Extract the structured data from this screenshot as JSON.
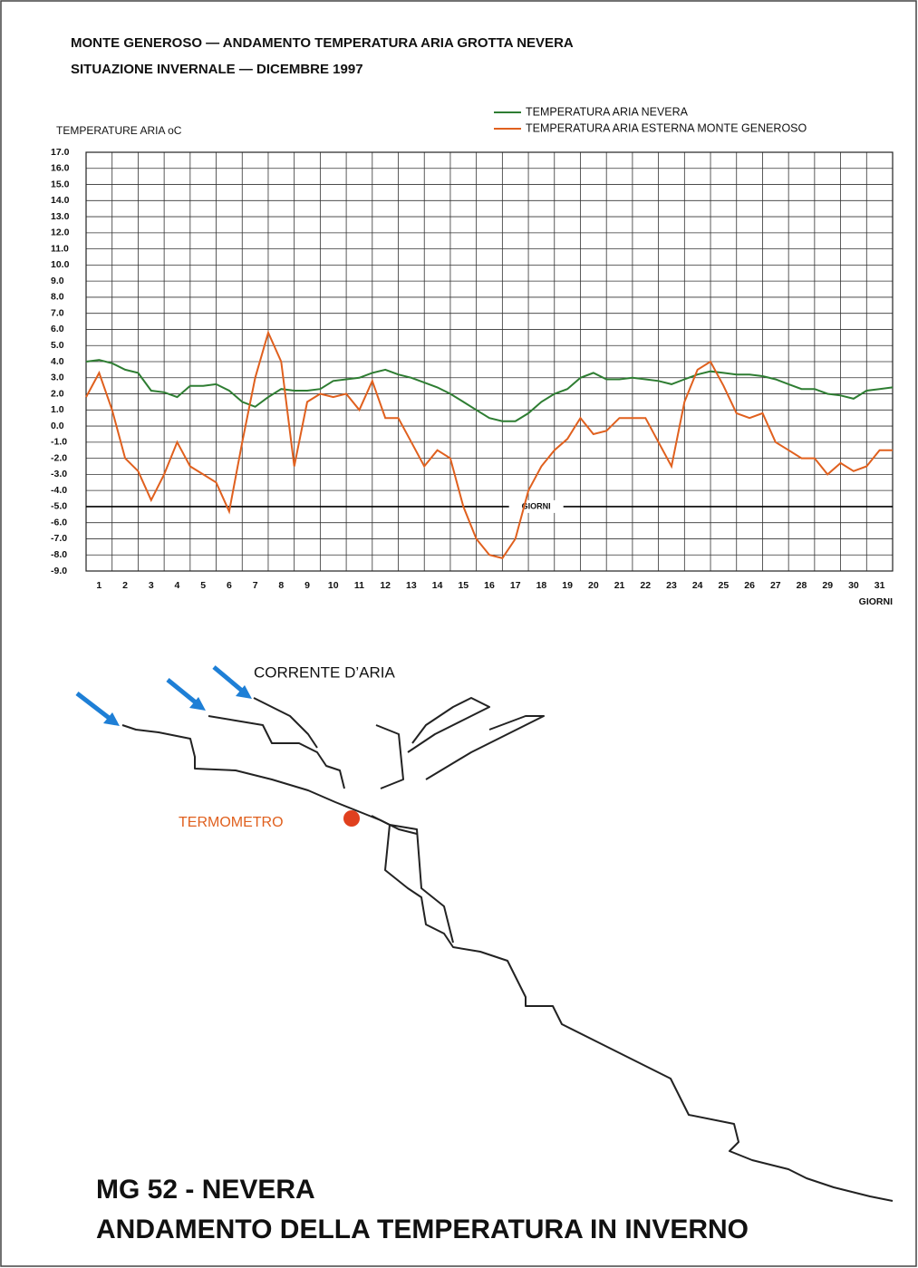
{
  "chart_data": {
    "type": "line",
    "title": "MONTE GENEROSO — ANDAMENTO TEMPERATURA ARIA GROTTA NEVERA",
    "subtitle": "SITUAZIONE INVERNALE — DICEMBRE 1997",
    "ylabel": "TEMPERATURE ARIA oC",
    "xlabel": "GIORNI",
    "legend": "top-right",
    "grid": true,
    "xlim": [
      0.5,
      31.5
    ],
    "xticks": [
      1,
      2,
      3,
      4,
      5,
      6,
      7,
      8,
      9,
      10,
      11,
      12,
      13,
      14,
      15,
      16,
      17,
      18,
      19,
      20,
      21,
      22,
      23,
      24,
      25,
      26,
      27,
      28,
      29,
      30,
      31
    ],
    "ylim": [
      -9,
      17
    ],
    "yticks": [
      {
        "value": 17,
        "label": "17.0"
      },
      {
        "value": 16,
        "label": "16.0"
      },
      {
        "value": 15,
        "label": "15.0"
      },
      {
        "value": 14,
        "label": "14.0"
      },
      {
        "value": 13,
        "label": "13.0"
      },
      {
        "value": 12,
        "label": "12.0"
      },
      {
        "value": 11,
        "label": "11.0"
      },
      {
        "value": 10,
        "label": "10.0"
      },
      {
        "value": 9,
        "label": "9.0"
      },
      {
        "value": 8,
        "label": "8.0"
      },
      {
        "value": 7,
        "label": "7.0"
      },
      {
        "value": 6,
        "label": "6.0"
      },
      {
        "value": 5,
        "label": "5.0"
      },
      {
        "value": 4,
        "label": "4.0"
      },
      {
        "value": 3,
        "label": "3.0"
      },
      {
        "value": 2,
        "label": "2.0"
      },
      {
        "value": 1,
        "label": "1.0"
      },
      {
        "value": 0,
        "label": "0.0"
      },
      {
        "value": -1,
        "label": "-1.0"
      },
      {
        "value": -2,
        "label": "-2.0"
      },
      {
        "value": -3,
        "label": "-3.0"
      },
      {
        "value": -4,
        "label": "-4.0"
      },
      {
        "value": -5,
        "label": "-5.0"
      },
      {
        "value": -6,
        "label": "-6.0"
      },
      {
        "value": -7,
        "label": "-7.0"
      },
      {
        "value": -8,
        "label": "-8.0"
      },
      {
        "value": -9,
        "label": "-9.0"
      }
    ],
    "annotation": {
      "text": "GIORNI",
      "x": 17.8,
      "y": -5
    },
    "x": [
      0.5,
      1,
      1.5,
      2,
      2.5,
      3,
      3.5,
      4,
      4.5,
      5,
      5.5,
      6,
      6.5,
      7,
      7.5,
      8,
      8.5,
      9,
      9.5,
      10,
      10.5,
      11,
      11.5,
      12,
      12.5,
      13,
      13.5,
      14,
      14.5,
      15,
      15.5,
      16,
      16.5,
      17,
      17.5,
      18,
      18.5,
      19,
      19.5,
      20,
      20.5,
      21,
      21.5,
      22,
      22.5,
      23,
      23.5,
      24,
      24.5,
      25,
      25.5,
      26,
      26.5,
      27,
      27.5,
      28,
      28.5,
      29,
      29.5,
      30,
      30.5,
      31,
      31.5
    ],
    "series": [
      {
        "name": "TEMPERATURA ARIA NEVERA",
        "color": "#2e7d32",
        "values": [
          4.0,
          4.1,
          3.9,
          3.5,
          3.3,
          2.2,
          2.1,
          1.8,
          2.5,
          2.5,
          2.6,
          2.2,
          1.5,
          1.2,
          1.8,
          2.3,
          2.2,
          2.2,
          2.3,
          2.8,
          2.9,
          3.0,
          3.3,
          3.5,
          3.2,
          3.0,
          2.7,
          2.4,
          2.0,
          1.5,
          1.0,
          0.5,
          0.3,
          0.3,
          0.8,
          1.5,
          2.0,
          2.3,
          3.0,
          3.3,
          2.9,
          2.9,
          3.0,
          2.9,
          2.8,
          2.6,
          2.9,
          3.2,
          3.4,
          3.3,
          3.2,
          3.2,
          3.1,
          2.9,
          2.6,
          2.3,
          2.3,
          2.0,
          1.9,
          1.7,
          2.2,
          2.3,
          2.4
        ]
      },
      {
        "name": "TEMPERATURA ARIA ESTERNA MONTE GENEROSO",
        "color": "#e0601e",
        "values": [
          1.8,
          3.3,
          1.0,
          -2.0,
          -2.8,
          -4.6,
          -3.0,
          -1.0,
          -2.5,
          -3.0,
          -3.5,
          -5.3,
          -1.0,
          3.0,
          5.8,
          4.0,
          -2.5,
          1.5,
          2.0,
          1.8,
          2.0,
          1.0,
          2.8,
          0.5,
          0.5,
          -1.0,
          -2.5,
          -1.5,
          -2.0,
          -5.0,
          -7.0,
          -8.0,
          -8.2,
          -7.0,
          -4.0,
          -2.5,
          -1.5,
          -0.8,
          0.5,
          -0.5,
          -0.3,
          0.5,
          0.5,
          0.5,
          -1.0,
          -2.5,
          1.5,
          3.5,
          4.0,
          2.5,
          0.8,
          0.5,
          0.8,
          -1.0,
          -1.5,
          -2.0,
          -2.0,
          -3.0,
          -2.3,
          -2.8,
          -2.5,
          -1.5,
          -1.5
        ]
      }
    ]
  },
  "diagram": {
    "air_current": "CORRENTE D’ARIA",
    "thermometer": "TERMOMETRO"
  },
  "footer": {
    "line1": "MG 52 - NEVERA",
    "line2": "ANDAMENTO DELLA TEMPERATURA IN INVERNO"
  }
}
